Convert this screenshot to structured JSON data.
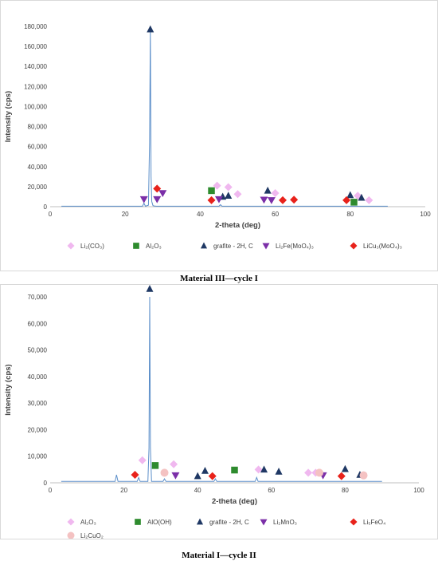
{
  "chart_data": [
    {
      "type": "line",
      "caption": "Material III—cycle I",
      "xlabel": "2-theta (deg)",
      "ylabel": "Intensity (cps)",
      "xlim": [
        0,
        100
      ],
      "ylim": [
        0,
        180000
      ],
      "xticks": [
        0,
        20,
        40,
        60,
        80,
        100
      ],
      "yticks": [
        0,
        20000,
        40000,
        60000,
        80000,
        100000,
        120000,
        140000,
        160000,
        180000
      ],
      "ytick_labels": [
        "0",
        "20,000",
        "40,000",
        "60,000",
        "80,000",
        "100,000",
        "120,000",
        "140,000",
        "160,000",
        "180,000"
      ],
      "line_color": "#5b8ec9",
      "pattern_x": [
        3,
        24.6,
        25,
        25.4,
        26.2,
        26.5,
        26.7,
        26.9,
        27.1,
        27.4,
        27.8,
        28.3,
        45,
        45.4,
        45.8,
        90
      ],
      "pattern_y": [
        500,
        500,
        3500,
        500,
        1500,
        64000,
        178000,
        30000,
        5000,
        1000,
        700,
        500,
        500,
        2000,
        500,
        500
      ],
      "legend_position": "bottom",
      "series": [
        {
          "name": "Li₂(CO₃)",
          "marker": "diamond",
          "color": "#f0b8ef",
          "x": [
            44.5,
            47.5,
            50,
            60,
            82,
            85
          ],
          "y": [
            21000,
            19500,
            12500,
            13500,
            11000,
            6500
          ]
        },
        {
          "name": "Al₂O₃",
          "marker": "square",
          "color": "#2e8b2e",
          "x": [
            43,
            81
          ],
          "y": [
            16000,
            4500
          ]
        },
        {
          "name": "grafite - 2H, C",
          "marker": "triangle",
          "color": "#1f3864",
          "x": [
            26.7,
            46,
            47.5,
            58,
            80,
            83
          ],
          "y": [
            177000,
            10000,
            11000,
            16000,
            11500,
            9000
          ]
        },
        {
          "name": "Li₂Fe(MoO₄)₃",
          "marker": "triangle-down",
          "color": "#7b2fa8",
          "x": [
            25,
            28.5,
            30,
            45,
            57,
            59
          ],
          "y": [
            7500,
            7500,
            13500,
            7500,
            7000,
            6500
          ]
        },
        {
          "name": "LiCu₃(MoO₄)₃",
          "marker": "diamond",
          "color": "#e8221b",
          "x": [
            28.5,
            43,
            62,
            65,
            79
          ],
          "y": [
            18000,
            6500,
            6500,
            7000,
            6500
          ]
        }
      ]
    },
    {
      "type": "line",
      "caption": "Material I—cycle II",
      "xlabel": "2-theta (deg)",
      "ylabel": "Intensity (cps)",
      "xlim": [
        0,
        100
      ],
      "ylim": [
        0,
        70000
      ],
      "xticks": [
        0,
        20,
        40,
        60,
        80,
        100
      ],
      "yticks": [
        0,
        10000,
        20000,
        30000,
        40000,
        50000,
        60000,
        70000
      ],
      "ytick_labels": [
        "0",
        "10,000",
        "20,000",
        "30,000",
        "40,000",
        "50,000",
        "60,000",
        "70,000"
      ],
      "line_color": "#5b8ec9",
      "pattern_x": [
        3,
        17.6,
        18,
        18.4,
        23.6,
        24,
        24.4,
        26.5,
        26.8,
        27,
        27.2,
        27.5,
        30.6,
        31,
        31.4,
        44.4,
        44.8,
        45.2,
        55.6,
        56,
        56.4,
        90
      ],
      "pattern_y": [
        500,
        500,
        3000,
        500,
        500,
        2000,
        500,
        500,
        13000,
        70000,
        13000,
        500,
        500,
        1500,
        500,
        500,
        1500,
        500,
        500,
        2000,
        500,
        500
      ],
      "legend_position": "bottom",
      "series": [
        {
          "name": "Al₂O₃",
          "marker": "diamond",
          "color": "#f0b8ef",
          "x": [
            25,
            33.5,
            56.5,
            70,
            72
          ],
          "y": [
            8500,
            7000,
            5000,
            3800,
            3800
          ]
        },
        {
          "name": "AlO(OH)",
          "marker": "square",
          "color": "#2e8b2e",
          "x": [
            28.5,
            50
          ],
          "y": [
            6500,
            4800
          ]
        },
        {
          "name": "grafite - 2H, C",
          "marker": "triangle",
          "color": "#1f3864",
          "x": [
            27,
            40,
            42,
            58,
            62,
            80,
            84
          ],
          "y": [
            73000,
            2500,
            4500,
            5000,
            4200,
            5200,
            3000
          ]
        },
        {
          "name": "Li₂MnO₃",
          "marker": "triangle-down",
          "color": "#7b2fa8",
          "x": [
            34,
            74
          ],
          "y": [
            2800,
            2800
          ]
        },
        {
          "name": "Li₅FeO₄",
          "marker": "diamond",
          "color": "#e8221b",
          "x": [
            23,
            44,
            79
          ],
          "y": [
            3000,
            2500,
            2500
          ]
        },
        {
          "name": "Li₂CuO₂",
          "marker": "circle",
          "color": "#f4c2c2",
          "x": [
            31,
            73,
            85
          ],
          "y": [
            3800,
            3800,
            2800
          ]
        }
      ]
    }
  ]
}
